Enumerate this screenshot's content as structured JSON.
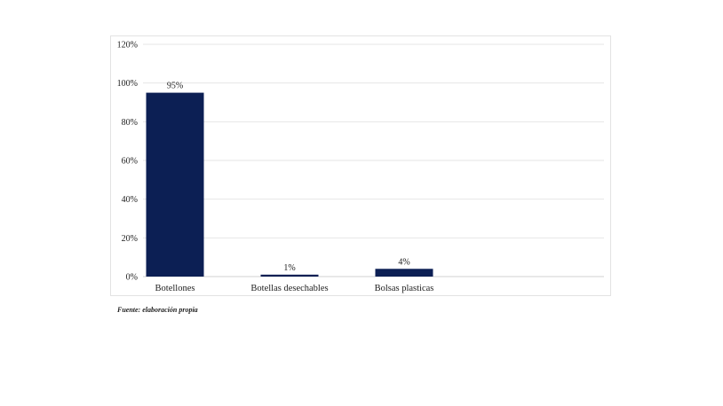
{
  "chart_data": {
    "type": "bar",
    "categories": [
      "Botellones",
      "Botellas desechables",
      "Bolsas plasticas"
    ],
    "values": [
      95,
      1,
      4
    ],
    "data_labels": [
      "95%",
      "1%",
      "4%"
    ],
    "title": "",
    "xlabel": "",
    "ylabel": "",
    "ylim": [
      0,
      120
    ],
    "yticks": [
      0,
      20,
      40,
      60,
      80,
      100,
      120
    ],
    "ytick_labels": [
      "0%",
      "20%",
      "40%",
      "60%",
      "80%",
      "100%",
      "120%"
    ],
    "grid": true,
    "legend": "none",
    "bar_color": "#0c1f54",
    "grid_color": "#e6e6e6"
  },
  "footer": {
    "source": "Fuente: elaboración propia"
  }
}
